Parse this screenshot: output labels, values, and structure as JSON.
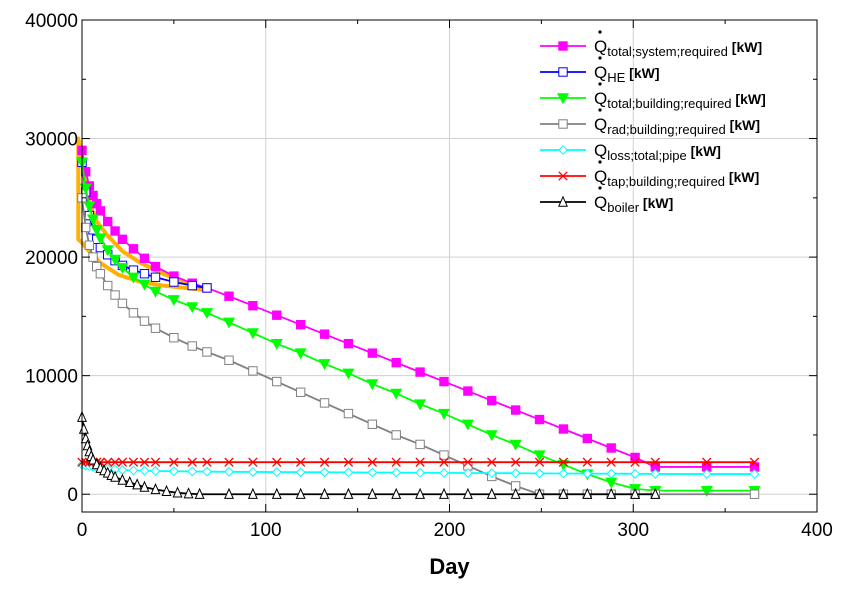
{
  "chart_data": {
    "type": "line",
    "title": "",
    "xlabel": "Day",
    "ylabel": "",
    "xlim": [
      0,
      400
    ],
    "ylim": [
      -1500,
      40000
    ],
    "x_ticks": [
      "0",
      "100",
      "200",
      "300",
      "400"
    ],
    "y_ticks": [
      "0",
      "10000",
      "20000",
      "30000",
      "40000"
    ],
    "grid": true,
    "legend_position": "top-right",
    "series": [
      {
        "key": "total_system_required",
        "symbol": "Q",
        "subscript": "total;system;required",
        "unit": "[kW]",
        "color": "#ff00ff",
        "marker": "square-filled",
        "x": [
          0,
          2,
          4,
          6,
          8,
          10,
          14,
          18,
          22,
          28,
          34,
          40,
          50,
          60,
          68,
          80,
          93,
          106,
          119,
          132,
          145,
          158,
          171,
          184,
          197,
          210,
          223,
          236,
          249,
          262,
          275,
          288,
          301,
          312,
          340,
          366
        ],
        "y": [
          29000,
          27200,
          26000,
          25200,
          24500,
          23900,
          23000,
          22200,
          21500,
          20700,
          19900,
          19200,
          18400,
          17800,
          17400,
          16700,
          15900,
          15100,
          14300,
          13500,
          12700,
          11900,
          11100,
          10300,
          9500,
          8700,
          7900,
          7100,
          6300,
          5500,
          4700,
          3900,
          3100,
          2300,
          2300,
          2300
        ]
      },
      {
        "key": "HE",
        "symbol": "Q",
        "subscript": "HE",
        "unit": "[kW]",
        "color": "#0000ff",
        "marker": "square-open",
        "x": [
          0,
          2,
          4,
          6,
          8,
          10,
          14,
          18,
          22,
          28,
          34,
          40,
          50,
          60,
          68
        ],
        "y": [
          28000,
          25500,
          23500,
          22300,
          21500,
          20800,
          20200,
          19700,
          19300,
          18900,
          18600,
          18300,
          17900,
          17600,
          17400
        ]
      },
      {
        "key": "total_building_required",
        "symbol": "Q",
        "subscript": "total;building;required",
        "unit": "[kW]",
        "color": "#00ff00",
        "marker": "triangle-down-filled",
        "x": [
          0,
          2,
          4,
          6,
          8,
          10,
          14,
          18,
          22,
          28,
          34,
          40,
          50,
          60,
          68,
          80,
          93,
          106,
          119,
          132,
          145,
          158,
          171,
          184,
          197,
          210,
          223,
          236,
          249,
          262,
          275,
          288,
          301,
          312,
          340,
          366
        ],
        "y": [
          28000,
          25800,
          24300,
          23200,
          22300,
          21600,
          20600,
          19800,
          19100,
          18300,
          17700,
          17100,
          16400,
          15800,
          15300,
          14500,
          13600,
          12700,
          11900,
          11000,
          10200,
          9300,
          8500,
          7600,
          6800,
          5900,
          5000,
          4200,
          3300,
          2500,
          1700,
          1000,
          450,
          300,
          300,
          300
        ]
      },
      {
        "key": "rad_building_required",
        "symbol": "Q",
        "subscript": "rad;building;required",
        "unit": "[kW]",
        "color": "#808080",
        "marker": "square-open",
        "x": [
          0,
          2,
          4,
          6,
          8,
          10,
          14,
          18,
          22,
          28,
          34,
          40,
          50,
          60,
          68,
          80,
          93,
          106,
          119,
          132,
          145,
          158,
          171,
          184,
          197,
          210,
          223,
          236,
          249,
          262,
          275,
          288,
          301,
          312,
          366
        ],
        "y": [
          25000,
          22500,
          21000,
          20000,
          19200,
          18600,
          17600,
          16800,
          16100,
          15300,
          14600,
          14000,
          13200,
          12500,
          12000,
          11300,
          10400,
          9500,
          8600,
          7700,
          6800,
          5900,
          5000,
          4200,
          3300,
          2400,
          1500,
          700,
          0,
          0,
          0,
          0,
          0,
          0,
          0
        ]
      },
      {
        "key": "loss_total_pipe",
        "symbol": "Q",
        "subscript": "loss;total;pipe",
        "unit": "[kW]",
        "color": "#00ffff",
        "marker": "diamond-open",
        "x": [
          0,
          2,
          4,
          6,
          8,
          10,
          14,
          18,
          22,
          28,
          34,
          40,
          50,
          60,
          68,
          80,
          93,
          106,
          119,
          132,
          145,
          158,
          171,
          184,
          197,
          210,
          223,
          236,
          249,
          262,
          275,
          288,
          301,
          312,
          340,
          366
        ],
        "y": [
          2500,
          2400,
          2350,
          2300,
          2250,
          2200,
          2150,
          2100,
          2050,
          2000,
          1980,
          1960,
          1940,
          1920,
          1900,
          1890,
          1880,
          1870,
          1860,
          1850,
          1840,
          1830,
          1820,
          1810,
          1800,
          1790,
          1780,
          1770,
          1760,
          1750,
          1740,
          1730,
          1720,
          1710,
          1700,
          1700
        ]
      },
      {
        "key": "tap_building_required",
        "symbol": "Q",
        "subscript": "tap;building;required",
        "unit": "[kW]",
        "color": "#ff0000",
        "marker": "x",
        "x": [
          0,
          2,
          4,
          6,
          8,
          10,
          14,
          18,
          22,
          28,
          34,
          40,
          50,
          60,
          68,
          80,
          93,
          106,
          119,
          132,
          145,
          158,
          171,
          184,
          197,
          210,
          223,
          236,
          249,
          262,
          275,
          288,
          301,
          312,
          340,
          366
        ],
        "y": [
          2700,
          2700,
          2700,
          2700,
          2700,
          2700,
          2700,
          2700,
          2700,
          2700,
          2700,
          2700,
          2700,
          2700,
          2700,
          2700,
          2700,
          2700,
          2700,
          2700,
          2700,
          2700,
          2700,
          2700,
          2700,
          2700,
          2700,
          2700,
          2700,
          2700,
          2700,
          2700,
          2700,
          2700,
          2700,
          2700
        ]
      },
      {
        "key": "boiler",
        "symbol": "Q",
        "subscript": "boiler",
        "unit": "[kW]",
        "color": "#000000",
        "marker": "triangle-up-open",
        "x": [
          0,
          1,
          2,
          3,
          4,
          5,
          6,
          8,
          10,
          12,
          14,
          16,
          18,
          22,
          26,
          30,
          34,
          40,
          46,
          52,
          58,
          64,
          80,
          93,
          106,
          119,
          132,
          145,
          158,
          171,
          184,
          197,
          210,
          223,
          236,
          249,
          262,
          275,
          288,
          301,
          312
        ],
        "y": [
          6500,
          5500,
          4700,
          4100,
          3600,
          3200,
          2900,
          2500,
          2200,
          2000,
          1800,
          1600,
          1450,
          1200,
          1000,
          800,
          600,
          400,
          250,
          120,
          50,
          0,
          0,
          0,
          0,
          0,
          0,
          0,
          0,
          0,
          0,
          0,
          0,
          0,
          0,
          0,
          0,
          0,
          0,
          0,
          0
        ]
      }
    ],
    "highlight": {
      "shape": "closed-outline",
      "color": "#ffb000",
      "description_points": [
        [
          -2,
          30000
        ],
        [
          1,
          27000
        ],
        [
          4,
          24500
        ],
        [
          8,
          23000
        ],
        [
          14,
          21800
        ],
        [
          22,
          20500
        ],
        [
          32,
          19500
        ],
        [
          44,
          18600
        ],
        [
          56,
          17900
        ],
        [
          68,
          17200
        ],
        [
          56,
          17400
        ],
        [
          44,
          17600
        ],
        [
          32,
          17900
        ],
        [
          20,
          18500
        ],
        [
          10,
          19500
        ],
        [
          5,
          20300
        ],
        [
          0,
          21200
        ],
        [
          -2,
          21500
        ]
      ]
    }
  }
}
